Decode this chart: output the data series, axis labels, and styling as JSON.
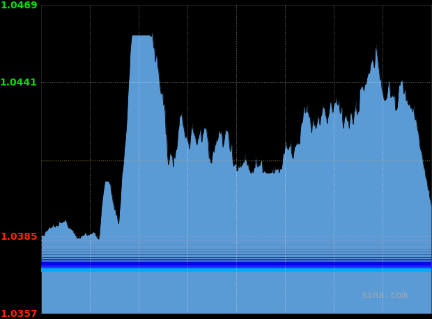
{
  "background_color": "#000000",
  "plot_bg_color": "#000000",
  "y_min": 1.0357,
  "y_max": 1.0469,
  "yticks": [
    1.0357,
    1.0385,
    1.0413,
    1.0441,
    1.0469
  ],
  "ytick_green_values": [
    1.0469,
    1.0441
  ],
  "ytick_red_values": [
    1.0385,
    1.0357
  ],
  "grid_color": "#ffffff",
  "fill_color": "#5b9bd5",
  "line_color": "#000000",
  "line_width": 0.6,
  "watermark": "sina.com",
  "watermark_color": "#aaaaaa",
  "n_points": 480,
  "open_value": 1.03855,
  "close_value": 1.0395,
  "horiz_line_value": 1.04125,
  "horiz_color": "#ccaa66",
  "horiz_line2_value": 1.0385,
  "horiz2_color": "#aaaacc",
  "bottom_lines": [
    {
      "value": 1.03835,
      "color": "#7799cc",
      "lw": 0.8
    },
    {
      "value": 1.0382,
      "color": "#6688bb",
      "lw": 0.8
    },
    {
      "value": 1.03805,
      "color": "#5577aa",
      "lw": 0.8
    },
    {
      "value": 1.03795,
      "color": "#4466aa",
      "lw": 0.8
    },
    {
      "value": 1.03785,
      "color": "#3355aa",
      "lw": 0.8
    },
    {
      "value": 1.03775,
      "color": "#2244aa",
      "lw": 0.8
    },
    {
      "value": 1.03768,
      "color": "#1133aa",
      "lw": 0.8
    },
    {
      "value": 1.03762,
      "color": "#0022bb",
      "lw": 0.8
    },
    {
      "value": 1.03758,
      "color": "#0011cc",
      "lw": 1.0
    },
    {
      "value": 1.03754,
      "color": "#0000dd",
      "lw": 1.2
    },
    {
      "value": 1.0375,
      "color": "#0000ee",
      "lw": 1.5
    },
    {
      "value": 1.03745,
      "color": "#1111ff",
      "lw": 2.0
    },
    {
      "value": 1.03738,
      "color": "#3333ff",
      "lw": 2.5
    },
    {
      "value": 1.0373,
      "color": "#00aaff",
      "lw": 3.5
    }
  ],
  "n_vgrid": 7
}
